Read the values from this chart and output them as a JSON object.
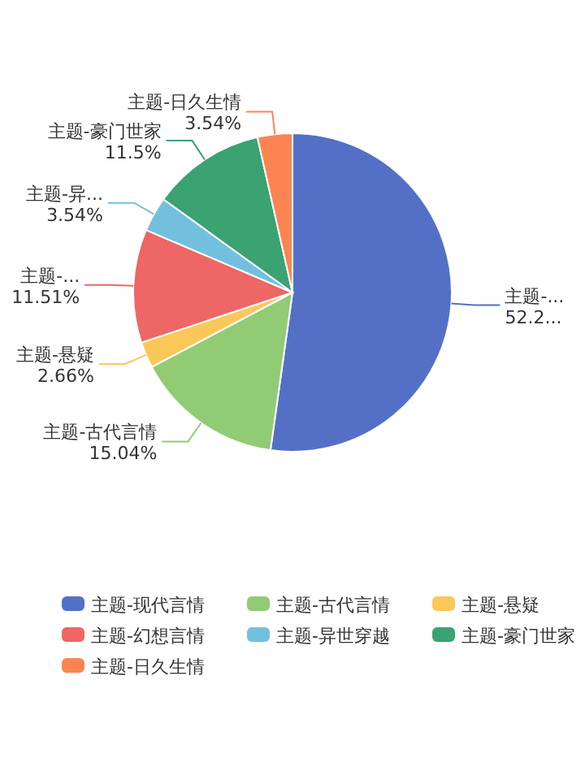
{
  "chart_data": {
    "type": "pie",
    "categories": [
      "主题-现代言情",
      "主题-古代言情",
      "主题-悬疑",
      "主题-幻想言情",
      "主题-异世穿越",
      "主题-豪门世家",
      "主题-日久生情"
    ],
    "values": [
      52.21,
      15.04,
      2.66,
      11.51,
      3.54,
      11.5,
      3.54
    ],
    "value_labels": [
      "主题-...\n52.2...",
      "主题-古代言情\n15.04%",
      "主题-悬疑\n2.66%",
      "主题-...\n11.51%",
      "主题-异...\n3.54%",
      "主题-豪门世家\n11.5%",
      "主题-日久生情\n3.54%"
    ],
    "colors": [
      "#5470c6",
      "#91cc75",
      "#fac858",
      "#ee6666",
      "#73c0de",
      "#3ba272",
      "#fc8452"
    ],
    "legend": "bottom"
  }
}
